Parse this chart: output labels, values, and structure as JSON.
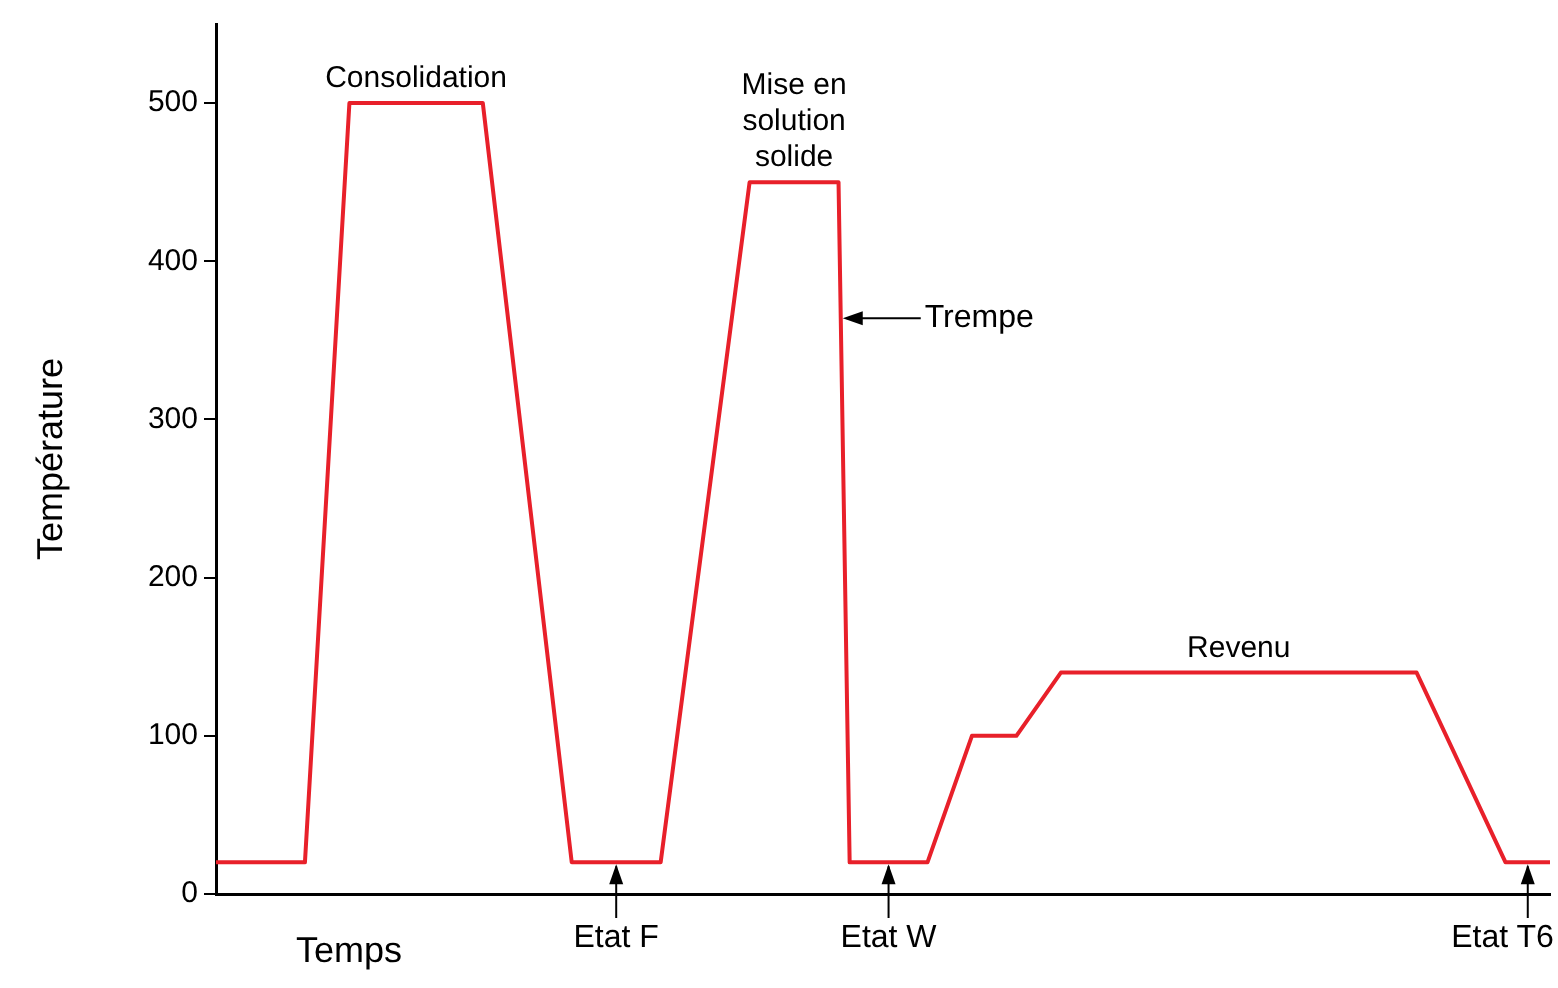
{
  "chart_data": {
    "type": "line",
    "xlabel": "Temps",
    "ylabel": "Température",
    "categories": [
      null,
      null,
      null,
      null,
      null,
      null,
      null,
      null,
      null,
      null,
      null,
      null,
      null,
      null,
      null,
      null,
      null,
      null,
      null,
      null,
      null,
      null,
      null,
      null,
      null,
      null,
      null,
      null,
      null,
      null,
      null,
      null,
      null,
      null,
      null,
      null,
      null,
      null,
      null,
      null,
      null,
      null,
      null,
      null,
      null,
      null,
      null,
      null,
      null,
      null,
      null,
      null,
      null,
      null,
      null,
      null,
      null,
      null,
      null,
      null,
      null,
      null,
      null,
      null,
      null,
      null,
      null,
      null,
      null,
      null,
      null,
      null,
      null,
      null,
      null,
      null,
      null,
      null,
      null,
      null,
      null,
      null,
      null,
      null,
      null,
      null,
      null,
      null,
      null,
      null,
      null,
      null,
      null,
      null,
      null,
      null,
      null,
      null,
      null,
      null,
      null,
      null,
      null,
      null,
      null,
      null,
      null,
      null,
      null,
      null,
      null,
      null,
      null,
      null,
      null,
      null,
      null,
      null,
      null,
      null,
      null
    ],
    "series": [
      {
        "color": "#e8202a",
        "values": [
          20,
          null,
          null,
          null,
          null,
          null,
          null,
          null,
          20,
          null,
          null,
          null,
          500,
          null,
          null,
          null,
          null,
          null,
          null,
          null,
          null,
          null,
          null,
          null,
          500,
          null,
          null,
          null,
          null,
          null,
          null,
          null,
          20,
          null,
          null,
          null,
          null,
          null,
          null,
          null,
          20,
          null,
          null,
          null,
          null,
          null,
          null,
          null,
          450,
          null,
          null,
          null,
          null,
          null,
          null,
          null,
          450,
          20,
          null,
          null,
          null,
          null,
          null,
          null,
          20,
          null,
          null,
          null,
          100,
          null,
          null,
          null,
          100,
          null,
          null,
          null,
          140,
          null,
          null,
          null,
          null,
          null,
          null,
          null,
          null,
          null,
          null,
          null,
          null,
          null,
          null,
          null,
          null,
          null,
          null,
          null,
          null,
          null,
          null,
          null,
          null,
          null,
          null,
          null,
          null,
          null,
          null,
          null,
          140,
          null,
          null,
          null,
          null,
          null,
          null,
          null,
          20,
          null,
          null,
          null,
          20
        ]
      }
    ],
    "ylim": [
      0,
      550
    ],
    "yticks": [
      0,
      100,
      200,
      300,
      400,
      500
    ],
    "tick_labels": "y",
    "grid": false,
    "legend": false,
    "marker": "none",
    "line_style": "solid",
    "annotations": [
      {
        "text": "Consolidation",
        "y": 500
      },
      {
        "text": "Mise en solution solide",
        "y": 450
      },
      "Trempe",
      {
        "text": "Revenu",
        "y": 140
      },
      {
        "text": "Etat F",
        "y": 20
      },
      {
        "text": "Etat W",
        "y": 20
      },
      {
        "text": "Etat T6",
        "y": 20
      }
    ]
  }
}
